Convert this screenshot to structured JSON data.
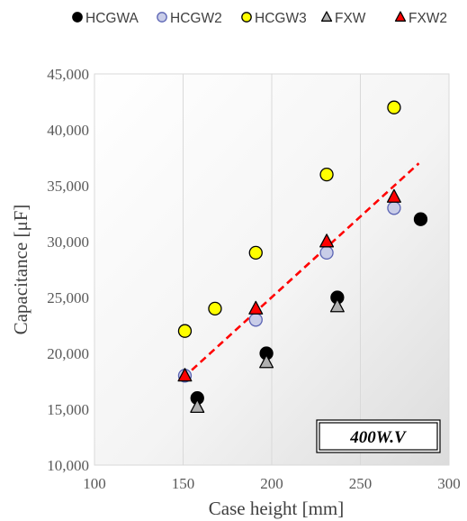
{
  "chart_data": {
    "type": "scatter",
    "xlabel": "Case height [mm]",
    "ylabel": "Capacitance [μF]",
    "xlim": [
      100,
      300
    ],
    "ylim": [
      10000,
      45000
    ],
    "x_ticks": [
      "100",
      "150",
      "200",
      "250",
      "300"
    ],
    "y_ticks": [
      "10,000",
      "15,000",
      "20,000",
      "25,000",
      "30,000",
      "35,000",
      "40,000",
      "45,000"
    ],
    "grid": "vertical",
    "legend_position": "top",
    "annotation": "400W.V",
    "series": [
      {
        "name": "HCGWA",
        "marker": "circle",
        "fill": "#000000",
        "stroke": "#000000",
        "points": [
          [
            158,
            16000
          ],
          [
            197,
            20000
          ],
          [
            237,
            25000
          ],
          [
            284,
            32000
          ]
        ]
      },
      {
        "name": "HCGW2",
        "marker": "circle",
        "fill": "#c9cde8",
        "stroke": "#5b64b4",
        "points": [
          [
            151,
            18000
          ],
          [
            191,
            23000
          ],
          [
            231,
            29000
          ],
          [
            269,
            33000
          ]
        ]
      },
      {
        "name": "HCGW3",
        "marker": "circle",
        "fill": "#ffff00",
        "stroke": "#000000",
        "points": [
          [
            151,
            22000
          ],
          [
            168,
            24000
          ],
          [
            191,
            29000
          ],
          [
            231,
            36000
          ],
          [
            269,
            42000
          ]
        ]
      },
      {
        "name": "FXW",
        "marker": "triangle",
        "fill": "#b0b0b0",
        "stroke": "#000000",
        "points": [
          [
            158,
            15200
          ],
          [
            197,
            19200
          ],
          [
            237,
            24200
          ]
        ]
      },
      {
        "name": "FXW2",
        "marker": "triangle",
        "fill": "#ff0000",
        "stroke": "#000000",
        "points": [
          [
            151,
            18000
          ],
          [
            191,
            24000
          ],
          [
            231,
            30000
          ],
          [
            269,
            34000
          ]
        ]
      }
    ],
    "trendline": {
      "color": "#ff0000",
      "style": "dashed",
      "points": [
        [
          150,
          17800
        ],
        [
          283,
          37000
        ]
      ]
    }
  }
}
